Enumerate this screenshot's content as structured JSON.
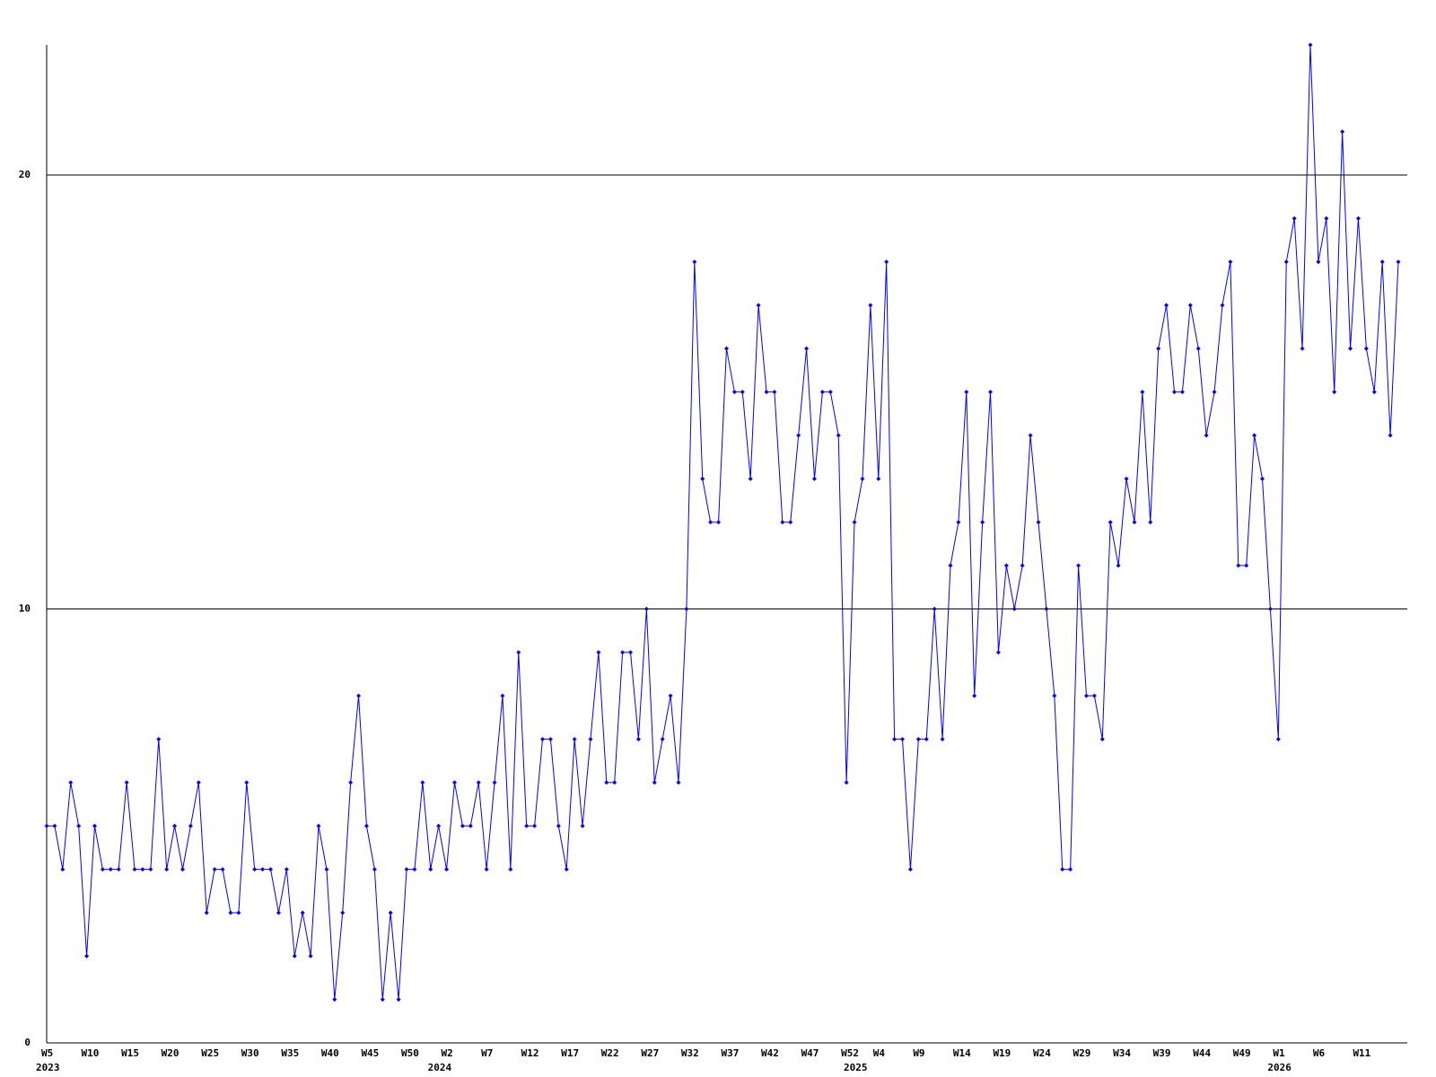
{
  "chart_data": {
    "type": "line",
    "categories": [
      "W5",
      null,
      null,
      null,
      null,
      "W10",
      null,
      null,
      null,
      null,
      "W15",
      null,
      null,
      null,
      null,
      "W20",
      null,
      null,
      null,
      null,
      "W25",
      null,
      null,
      null,
      null,
      "W30",
      null,
      null,
      null,
      null,
      "W35",
      null,
      null,
      null,
      null,
      "W40",
      null,
      null,
      null,
      null,
      "W45",
      null,
      null,
      null,
      null,
      "W50",
      null,
      null,
      null,
      null,
      "W2",
      null,
      null,
      null,
      null,
      "W7",
      null,
      null,
      null,
      null,
      "W12",
      null,
      null,
      null,
      null,
      "W17",
      null,
      null,
      null,
      null,
      "W22",
      null,
      null,
      null,
      null,
      "W27",
      null,
      null,
      null,
      null,
      "W32",
      null,
      null,
      null,
      null,
      "W37",
      null,
      null,
      null,
      null,
      "W42",
      null,
      null,
      null,
      null,
      "W47",
      null,
      null,
      null,
      null,
      "W52",
      null,
      null,
      null,
      "W4",
      null,
      null,
      null,
      null,
      "W9",
      null,
      null,
      null,
      null,
      "W14",
      null,
      null,
      null,
      null,
      "W19",
      null,
      null,
      null,
      null,
      "W24",
      null,
      null,
      null,
      null,
      "W29",
      null,
      null,
      null,
      null,
      "W34",
      null,
      null,
      null,
      null,
      "W39",
      null,
      null,
      null,
      null,
      "W44",
      null,
      null,
      null,
      null,
      "W49",
      null,
      null,
      null,
      null,
      "W1",
      null,
      null,
      null,
      null,
      "W6",
      null,
      null,
      null,
      null,
      "W11",
      null,
      null,
      null,
      null,
      null
    ],
    "category_years": [
      "2023",
      null,
      null,
      null,
      null,
      null,
      null,
      null,
      null,
      null,
      null,
      null,
      null,
      null,
      null,
      null,
      null,
      null,
      null,
      null,
      null,
      null,
      null,
      null,
      null,
      null,
      null,
      null,
      null,
      null,
      null,
      null,
      null,
      null,
      null,
      null,
      null,
      null,
      null,
      null,
      null,
      null,
      null,
      null,
      null,
      null,
      null,
      null,
      null,
      "2024",
      null,
      null,
      null,
      null,
      null,
      null,
      null,
      null,
      null,
      null,
      null,
      null,
      null,
      null,
      null,
      null,
      null,
      null,
      null,
      null,
      null,
      null,
      null,
      null,
      null,
      null,
      null,
      null,
      null,
      null,
      null,
      null,
      null,
      null,
      null,
      null,
      null,
      null,
      null,
      null,
      null,
      null,
      null,
      null,
      null,
      null,
      null,
      null,
      null,
      null,
      null,
      "2025",
      null,
      null,
      null,
      null,
      null,
      null,
      null,
      null,
      null,
      null,
      null,
      null,
      null,
      null,
      null,
      null,
      null,
      null,
      null,
      null,
      null,
      null,
      null,
      null,
      null,
      null,
      null,
      null,
      null,
      null,
      null,
      null,
      null,
      null,
      null,
      null,
      null,
      null,
      null,
      null,
      null,
      null,
      null,
      null,
      null,
      null,
      null,
      null,
      null,
      null,
      null,
      null,
      "2026",
      null,
      null,
      null,
      null,
      null,
      null,
      null,
      null,
      null,
      null,
      null,
      null,
      null,
      null,
      null
    ],
    "values": [
      5,
      5,
      4,
      6,
      5,
      2,
      5,
      4,
      4,
      4,
      6,
      4,
      4,
      4,
      7,
      4,
      5,
      4,
      5,
      6,
      3,
      4,
      4,
      3,
      3,
      6,
      4,
      4,
      4,
      3,
      4,
      2,
      3,
      2,
      5,
      4,
      1,
      3,
      6,
      8,
      5,
      4,
      1,
      3,
      1,
      4,
      4,
      6,
      4,
      5,
      4,
      6,
      5,
      5,
      6,
      4,
      6,
      8,
      4,
      9,
      5,
      5,
      7,
      7,
      5,
      4,
      7,
      5,
      7,
      9,
      6,
      6,
      9,
      9,
      7,
      10,
      6,
      7,
      8,
      6,
      10,
      18,
      13,
      12,
      12,
      16,
      15,
      15,
      13,
      17,
      15,
      15,
      12,
      12,
      14,
      16,
      13,
      15,
      15,
      14,
      6,
      12,
      13,
      17,
      13,
      18,
      7,
      7,
      4,
      7,
      7,
      10,
      7,
      11,
      12,
      15,
      8,
      12,
      15,
      9,
      11,
      10,
      11,
      14,
      12,
      10,
      8,
      4,
      4,
      11,
      8,
      8,
      7,
      12,
      11,
      13,
      12,
      15,
      12,
      16,
      17,
      15,
      15,
      17,
      16,
      14,
      15,
      17,
      18,
      11,
      11,
      14,
      13,
      10,
      7,
      18,
      19,
      16,
      23,
      18,
      19,
      15,
      21,
      16,
      19,
      16,
      15,
      18,
      14,
      18
    ],
    "color": "#0000ff",
    "ylim": [
      0,
      23
    ],
    "yticks": [
      0,
      10,
      20
    ],
    "grid": true
  }
}
